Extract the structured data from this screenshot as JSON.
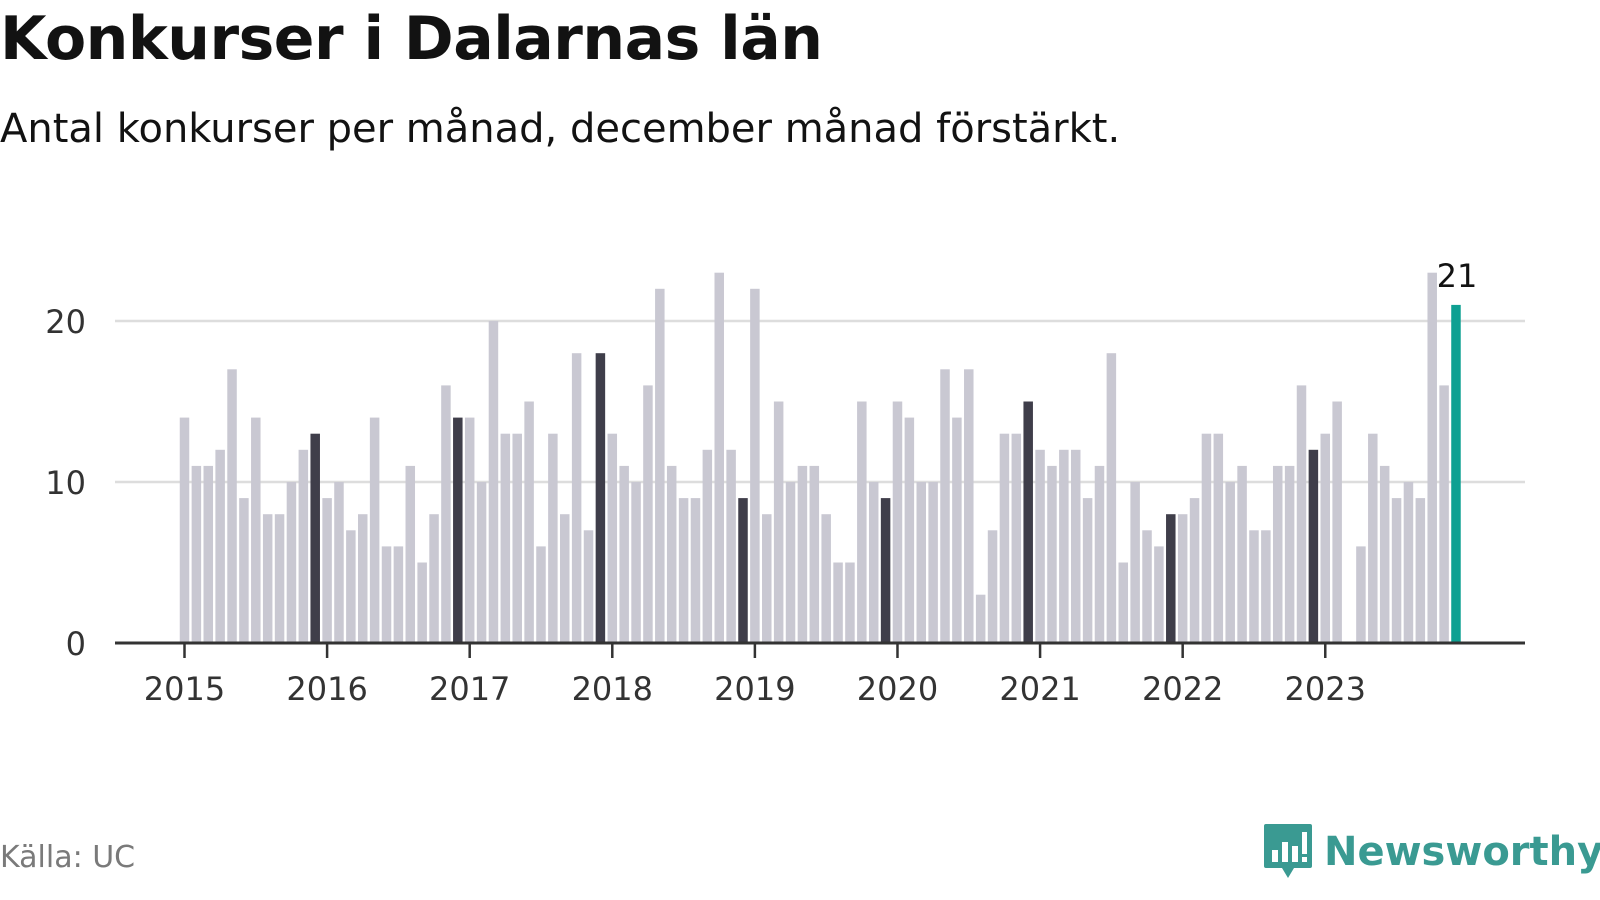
{
  "header": {
    "title": "Konkurser i Dalarnas län",
    "subtitle": "Antal konkurser per månad, december månad förstärkt."
  },
  "footer": {
    "source": "Källa: UC",
    "brand_name": "Newsworthy",
    "brand_icon": "newsworthy-logo-icon"
  },
  "colors": {
    "bar_default": "#c9c8d2",
    "bar_december": "#3f3e4a",
    "bar_latest": "#0ea092",
    "grid": "#dddddd",
    "axis": "#333333",
    "brand": "#3a9a92"
  },
  "chart_data": {
    "type": "bar",
    "title": "Konkurser i Dalarnas län",
    "subtitle": "Antal konkurser per månad, december månad förstärkt.",
    "xlabel": "",
    "ylabel": "",
    "ylim": [
      0,
      24
    ],
    "yticks": [
      0,
      10,
      20
    ],
    "xtick_labels": [
      "2015",
      "2016",
      "2017",
      "2018",
      "2019",
      "2020",
      "2021",
      "2022",
      "2023"
    ],
    "grid": true,
    "start": "2015-01",
    "highlight": "december",
    "latest_label": "21",
    "values": [
      14,
      11,
      11,
      12,
      17,
      9,
      14,
      8,
      8,
      10,
      12,
      13,
      9,
      10,
      7,
      8,
      14,
      6,
      6,
      11,
      5,
      8,
      16,
      14,
      14,
      10,
      20,
      13,
      13,
      15,
      6,
      13,
      8,
      18,
      7,
      18,
      13,
      11,
      10,
      16,
      22,
      11,
      9,
      9,
      12,
      23,
      12,
      9,
      22,
      8,
      15,
      10,
      11,
      11,
      8,
      5,
      5,
      15,
      10,
      9,
      15,
      14,
      10,
      10,
      17,
      14,
      17,
      3,
      7,
      13,
      13,
      15,
      12,
      11,
      12,
      12,
      9,
      11,
      18,
      5,
      10,
      7,
      6,
      8,
      8,
      9,
      13,
      13,
      10,
      11,
      7,
      7,
      11,
      11,
      16,
      12,
      13,
      15,
      0,
      6,
      13,
      11,
      9,
      10,
      9,
      23,
      16,
      21
    ]
  }
}
